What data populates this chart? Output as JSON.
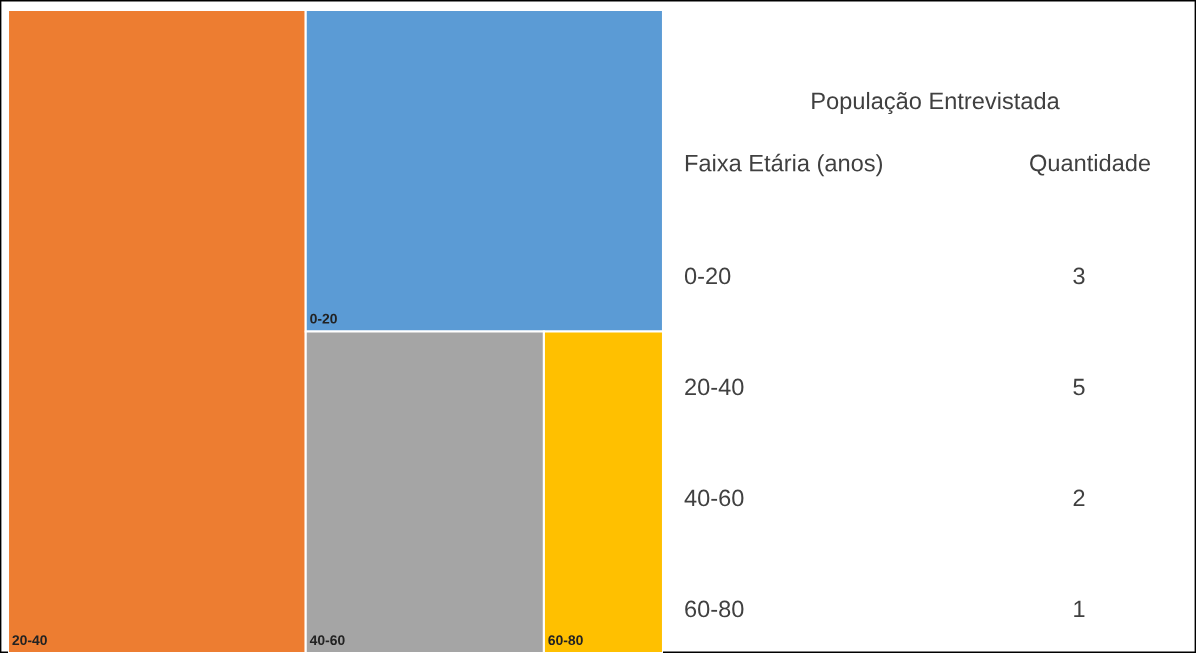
{
  "chart_data": {
    "type": "other",
    "title": "População Entrevistada",
    "annotations": [
      "Faixa Etária (anos)",
      "Quantidade"
    ],
    "categories": [
      "0-20",
      "20-40",
      "40-60",
      "60-80"
    ],
    "values": [
      3,
      5,
      2,
      1
    ],
    "colors": [
      "#5b9bd5",
      "#ed7d31",
      "#a5a5a5",
      "#ffc000"
    ],
    "data_labels": true
  }
}
